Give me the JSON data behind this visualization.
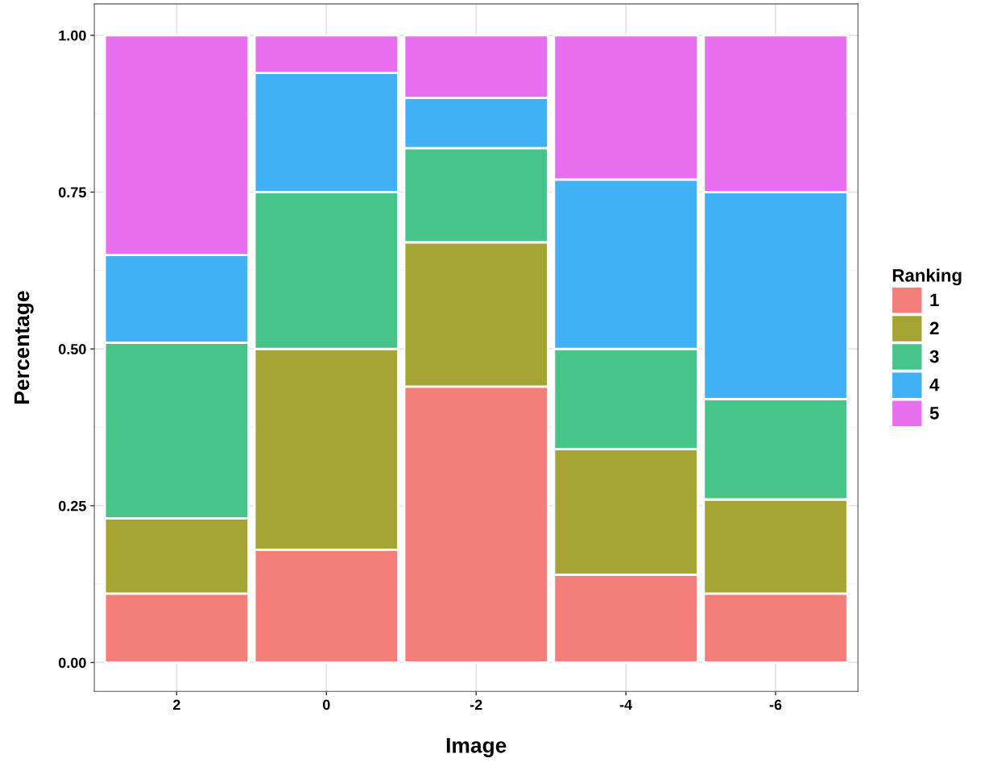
{
  "chart_data": {
    "type": "bar",
    "stacked": true,
    "xlabel": "Image",
    "ylabel": "Percentage",
    "legend_title": "Ranking",
    "legend": "right",
    "grid": true,
    "categories": [
      "2",
      "0",
      "-2",
      "-4",
      "-6"
    ],
    "series": [
      {
        "name": "1",
        "color": "#f47f79",
        "values": [
          0.11,
          0.18,
          0.44,
          0.14,
          0.11
        ]
      },
      {
        "name": "2",
        "color": "#a6a533",
        "values": [
          0.12,
          0.32,
          0.23,
          0.2,
          0.15
        ]
      },
      {
        "name": "3",
        "color": "#47c48a",
        "values": [
          0.28,
          0.25,
          0.15,
          0.16,
          0.16
        ]
      },
      {
        "name": "4",
        "color": "#41b0f4",
        "values": [
          0.14,
          0.19,
          0.08,
          0.27,
          0.33
        ]
      },
      {
        "name": "5",
        "color": "#e86ff0",
        "values": [
          0.35,
          0.06,
          0.1,
          0.23,
          0.25
        ]
      }
    ],
    "ylim": [
      -0.046,
      1.05
    ],
    "yticks": [
      {
        "value": 0,
        "label": "0.00"
      },
      {
        "value": 0.25,
        "label": "0.25"
      },
      {
        "value": 0.5,
        "label": "0.50"
      },
      {
        "value": 0.75,
        "label": "0.75"
      },
      {
        "value": 1,
        "label": "1.00"
      }
    ]
  }
}
